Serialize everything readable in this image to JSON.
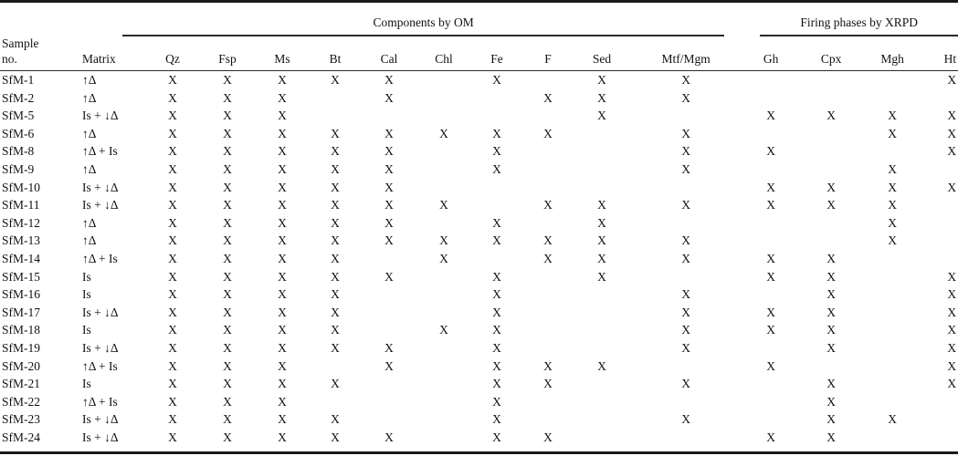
{
  "page": {
    "background": "#ffffff",
    "ink": "#111111",
    "rule_color": "#2a2a2a"
  },
  "table": {
    "header": {
      "sample_line1": "Sample",
      "sample_line2": "no.",
      "matrix": "Matrix",
      "om_group": "Components by OM",
      "xrpd_group": "Firing phases by XRPD",
      "om_cols": [
        "Qz",
        "Fsp",
        "Ms",
        "Bt",
        "Cal",
        "Chl",
        "Fe",
        "F",
        "Sed",
        "Mtf/Mgm"
      ],
      "xrpd_cols": [
        "Gh",
        "Cpx",
        "Mgh",
        "Ht"
      ]
    },
    "mark": "X",
    "rows": [
      {
        "sample": "SfM-1",
        "matrix": "↑Δ",
        "om": [
          "X",
          "X",
          "X",
          "X",
          "X",
          "",
          "X",
          "",
          "X",
          "X"
        ],
        "xrpd": [
          "",
          "",
          "",
          "X"
        ]
      },
      {
        "sample": "SfM-2",
        "matrix": "↑Δ",
        "om": [
          "X",
          "X",
          "X",
          "",
          "X",
          "",
          "",
          "X",
          "X",
          "X"
        ],
        "xrpd": [
          "",
          "",
          "",
          ""
        ]
      },
      {
        "sample": "SfM-5",
        "matrix": "Is + ↓Δ",
        "om": [
          "X",
          "X",
          "X",
          "",
          "",
          "",
          "",
          "",
          "X",
          ""
        ],
        "xrpd": [
          "X",
          "X",
          "X",
          "X"
        ]
      },
      {
        "sample": "SfM-6",
        "matrix": "↑Δ",
        "om": [
          "X",
          "X",
          "X",
          "X",
          "X",
          "X",
          "X",
          "X",
          "",
          "X"
        ],
        "xrpd": [
          "",
          "",
          "X",
          "X"
        ]
      },
      {
        "sample": "SfM-8",
        "matrix": "↑Δ + Is",
        "om": [
          "X",
          "X",
          "X",
          "X",
          "X",
          "",
          "X",
          "",
          "",
          "X"
        ],
        "xrpd": [
          "X",
          "",
          "",
          "X"
        ]
      },
      {
        "sample": "SfM-9",
        "matrix": "↑Δ",
        "om": [
          "X",
          "X",
          "X",
          "X",
          "X",
          "",
          "X",
          "",
          "",
          "X"
        ],
        "xrpd": [
          "",
          "",
          "X",
          ""
        ]
      },
      {
        "sample": "SfM-10",
        "matrix": "Is + ↓Δ",
        "om": [
          "X",
          "X",
          "X",
          "X",
          "X",
          "",
          "",
          "",
          "",
          ""
        ],
        "xrpd": [
          "X",
          "X",
          "X",
          "X"
        ]
      },
      {
        "sample": "SfM-11",
        "matrix": "Is + ↓Δ",
        "om": [
          "X",
          "X",
          "X",
          "X",
          "X",
          "X",
          "",
          "X",
          "X",
          "X"
        ],
        "xrpd": [
          "X",
          "X",
          "X",
          ""
        ]
      },
      {
        "sample": "SfM-12",
        "matrix": "↑Δ",
        "om": [
          "X",
          "X",
          "X",
          "X",
          "X",
          "",
          "X",
          "",
          "X",
          ""
        ],
        "xrpd": [
          "",
          "",
          "X",
          ""
        ]
      },
      {
        "sample": "SfM-13",
        "matrix": "↑Δ",
        "om": [
          "X",
          "X",
          "X",
          "X",
          "X",
          "X",
          "X",
          "X",
          "X",
          "X"
        ],
        "xrpd": [
          "",
          "",
          "X",
          ""
        ]
      },
      {
        "sample": "SfM-14",
        "matrix": "↑Δ + Is",
        "om": [
          "X",
          "X",
          "X",
          "X",
          "",
          "X",
          "",
          "X",
          "X",
          "X"
        ],
        "xrpd": [
          "X",
          "X",
          "",
          ""
        ]
      },
      {
        "sample": "SfM-15",
        "matrix": "Is",
        "om": [
          "X",
          "X",
          "X",
          "X",
          "X",
          "",
          "X",
          "",
          "X",
          ""
        ],
        "xrpd": [
          "X",
          "X",
          "",
          "X"
        ]
      },
      {
        "sample": "SfM-16",
        "matrix": "Is",
        "om": [
          "X",
          "X",
          "X",
          "X",
          "",
          "",
          "X",
          "",
          "",
          "X"
        ],
        "xrpd": [
          "",
          "X",
          "",
          "X"
        ]
      },
      {
        "sample": "SfM-17",
        "matrix": "Is + ↓Δ",
        "om": [
          "X",
          "X",
          "X",
          "X",
          "",
          "",
          "X",
          "",
          "",
          "X"
        ],
        "xrpd": [
          "X",
          "X",
          "",
          "X"
        ]
      },
      {
        "sample": "SfM-18",
        "matrix": "Is",
        "om": [
          "X",
          "X",
          "X",
          "X",
          "",
          "X",
          "X",
          "",
          "",
          "X"
        ],
        "xrpd": [
          "X",
          "X",
          "",
          "X"
        ]
      },
      {
        "sample": "SfM-19",
        "matrix": "Is + ↓Δ",
        "om": [
          "X",
          "X",
          "X",
          "X",
          "X",
          "",
          "X",
          "",
          "",
          "X"
        ],
        "xrpd": [
          "",
          "X",
          "",
          "X"
        ]
      },
      {
        "sample": "SfM-20",
        "matrix": "↑Δ + Is",
        "om": [
          "X",
          "X",
          "X",
          "",
          "X",
          "",
          "X",
          "X",
          "X",
          ""
        ],
        "xrpd": [
          "X",
          "",
          "",
          "X"
        ]
      },
      {
        "sample": "SfM-21",
        "matrix": "Is",
        "om": [
          "X",
          "X",
          "X",
          "X",
          "",
          "",
          "X",
          "X",
          "",
          "X"
        ],
        "xrpd": [
          "",
          "X",
          "",
          "X"
        ]
      },
      {
        "sample": "SfM-22",
        "matrix": "↑Δ + Is",
        "om": [
          "X",
          "X",
          "X",
          "",
          "",
          "",
          "X",
          "",
          "",
          ""
        ],
        "xrpd": [
          "",
          "X",
          "",
          ""
        ]
      },
      {
        "sample": "SfM-23",
        "matrix": "Is + ↓Δ",
        "om": [
          "X",
          "X",
          "X",
          "X",
          "",
          "",
          "X",
          "",
          "",
          "X"
        ],
        "xrpd": [
          "",
          "X",
          "X",
          ""
        ]
      },
      {
        "sample": "SfM-24",
        "matrix": "Is + ↓Δ",
        "om": [
          "X",
          "X",
          "X",
          "X",
          "X",
          "",
          "X",
          "X",
          "",
          ""
        ],
        "xrpd": [
          "X",
          "X",
          "",
          ""
        ]
      }
    ]
  }
}
